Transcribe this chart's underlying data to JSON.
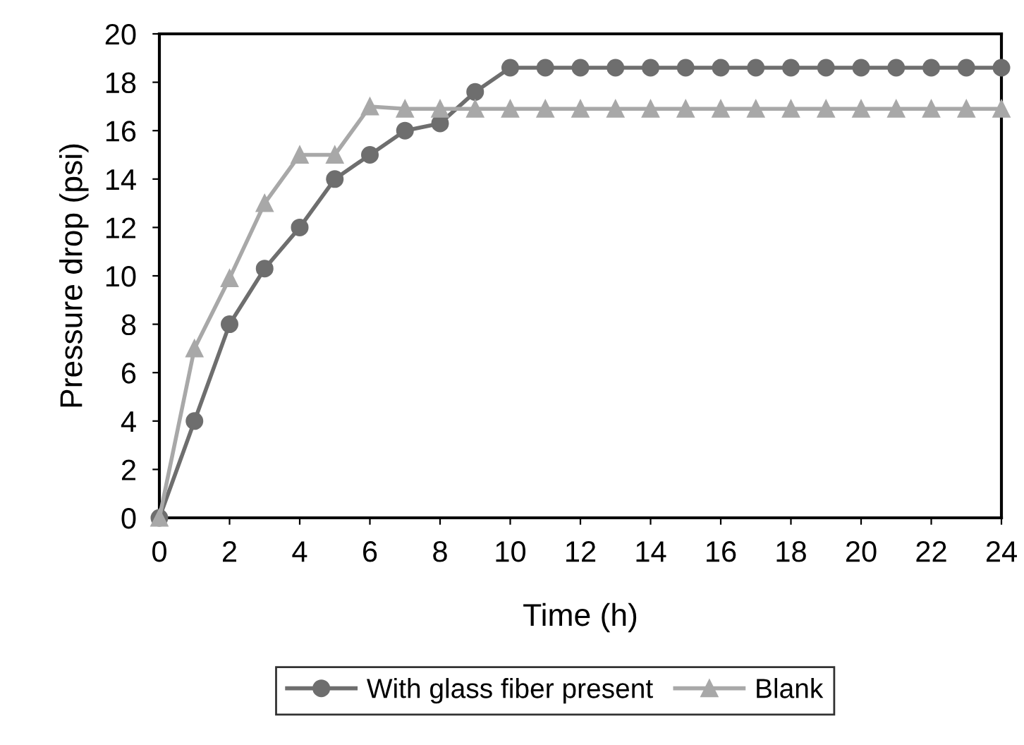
{
  "chart_data": {
    "type": "line",
    "xlabel": "Time (h)",
    "ylabel": "Pressure drop (psi)",
    "x": [
      0,
      1,
      2,
      3,
      4,
      5,
      6,
      7,
      8,
      9,
      10,
      11,
      12,
      13,
      14,
      15,
      16,
      17,
      18,
      19,
      20,
      21,
      22,
      23,
      24
    ],
    "series": [
      {
        "name": "With glass fiber present",
        "color": "#6e6e6e",
        "marker": "circle",
        "values": [
          0,
          4,
          8,
          10.3,
          12,
          14,
          15,
          16,
          16.3,
          17.6,
          18.6,
          18.6,
          18.6,
          18.6,
          18.6,
          18.6,
          18.6,
          18.6,
          18.6,
          18.6,
          18.6,
          18.6,
          18.6,
          18.6,
          18.6
        ]
      },
      {
        "name": "Blank",
        "color": "#a8a8a8",
        "marker": "triangle",
        "values": [
          0,
          7,
          9.9,
          13,
          15,
          15,
          17,
          16.9,
          16.9,
          16.9,
          16.9,
          16.9,
          16.9,
          16.9,
          16.9,
          16.9,
          16.9,
          16.9,
          16.9,
          16.9,
          16.9,
          16.9,
          16.9,
          16.9,
          16.9
        ]
      }
    ],
    "xlim": [
      0,
      24
    ],
    "ylim": [
      0,
      20
    ],
    "xticks": [
      0,
      2,
      4,
      6,
      8,
      10,
      12,
      14,
      16,
      18,
      20,
      22,
      24
    ],
    "yticks": [
      0,
      2,
      4,
      6,
      8,
      10,
      12,
      14,
      16,
      18,
      20
    ],
    "grid": false,
    "legend": "bottom"
  }
}
